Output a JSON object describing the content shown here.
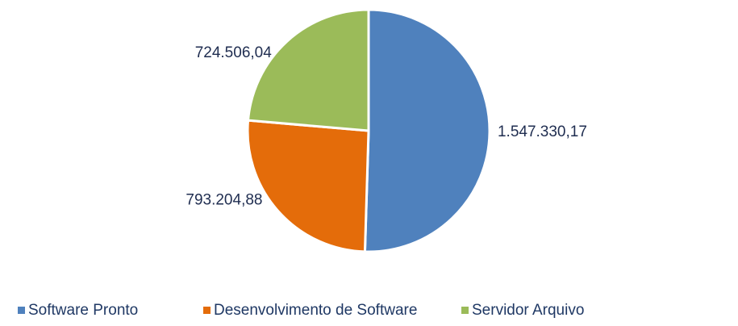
{
  "chart_data": {
    "type": "pie",
    "categories": [
      "Software Pronto",
      "Desenvolvimento de Software",
      "Servidor Arquivo"
    ],
    "values": [
      1547330.17,
      793204.88,
      724506.04
    ],
    "value_labels": [
      "1.547.330,17",
      "793.204,88",
      "724.506,04"
    ],
    "colors": [
      "#4f81bd",
      "#e46c0a",
      "#9bbb59"
    ],
    "legend": "bottom"
  }
}
